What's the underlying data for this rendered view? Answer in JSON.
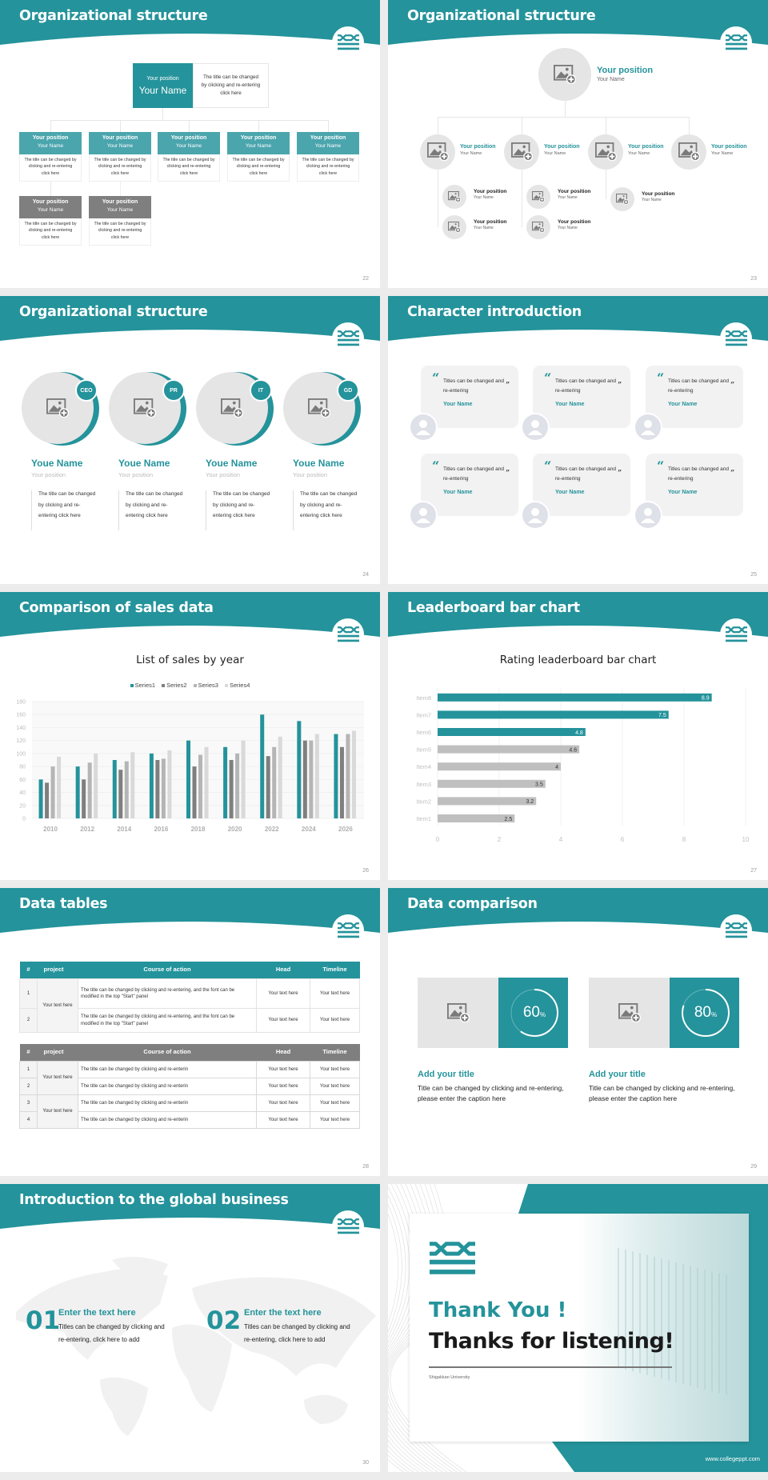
{
  "theme": {
    "accent": "#24939b",
    "dark_gray": "#7f7f7f",
    "light_gray": "#e6e5e5",
    "page_bg": "#ececec"
  },
  "slides": [
    {
      "title": "Organizational structure",
      "page": "22",
      "top": {
        "position": "Your position",
        "name": "Your Name",
        "desc": "The title can be changed by clicking and re-entering click here"
      },
      "row1": [
        {
          "position": "Your position",
          "name": "Your Name",
          "desc": "The title can be changed by clicking and re-entering click here"
        },
        {
          "position": "Your position",
          "name": "Your Name",
          "desc": "The title can be changed by clicking and re-entering click here"
        },
        {
          "position": "Your position",
          "name": "Your Name",
          "desc": "The title can be changed by clicking and re-entering click here"
        },
        {
          "position": "Your position",
          "name": "Your Name",
          "desc": "The title can be changed by clicking and re-entering click here"
        },
        {
          "position": "Your position",
          "name": "Your Name",
          "desc": "The title can be changed by clicking and re-entering click here"
        }
      ],
      "row2": [
        {
          "position": "Your position",
          "name": "Your Name",
          "desc": "The title can be changed by clicking and re-entering click here"
        },
        {
          "position": "Your position",
          "name": "Your Name",
          "desc": "The title can be changed by clicking and re-entering click here"
        }
      ]
    },
    {
      "title": "Organizational structure",
      "page": "23",
      "top": {
        "position": "Your position",
        "name": "Your Name"
      },
      "level2": [
        {
          "position": "Your position",
          "name": "Your Name"
        },
        {
          "position": "Your position",
          "name": "Your Name"
        },
        {
          "position": "Your position",
          "name": "Your Name"
        },
        {
          "position": "Your position",
          "name": "Your Name"
        }
      ],
      "level3": [
        {
          "position": "Your position",
          "name": "Your Name"
        },
        {
          "position": "Your position",
          "name": "Your Name"
        },
        {
          "position": "Your position",
          "name": "Your Name"
        },
        {
          "position": "Your position",
          "name": "Your Name"
        },
        {
          "position": "Your position",
          "name": "Your Name"
        }
      ]
    },
    {
      "title": "Organizational structure",
      "page": "24",
      "members": [
        {
          "badge": "CEO",
          "name": "Youe Name",
          "position": "Your position",
          "desc": "The title can be changed by clicking and re-entering click here"
        },
        {
          "badge": "PR",
          "name": "Youe Name",
          "position": "Your position",
          "desc": "The title can be changed by clicking and re-entering click here"
        },
        {
          "badge": "IT",
          "name": "Youe Name",
          "position": "Your position",
          "desc": "The title can be changed by clicking and re-entering click here"
        },
        {
          "badge": "GD",
          "name": "Youe Name",
          "position": "Your position",
          "desc": "The title can be changed by clicking and re-entering click here"
        }
      ]
    },
    {
      "title": "Character introduction",
      "page": "25",
      "cards": [
        {
          "quote": "Titles can be changed and re-entering",
          "name": "Your Name"
        },
        {
          "quote": "Titles can be changed and re-entering",
          "name": "Your Name"
        },
        {
          "quote": "Titles can be changed and re-entering",
          "name": "Your Name"
        },
        {
          "quote": "Titles can be changed and re-entering",
          "name": "Your Name"
        },
        {
          "quote": "Titles can be changed and re-entering",
          "name": "Your Name"
        },
        {
          "quote": "Titles can be changed and re-entering",
          "name": "Your Name"
        }
      ]
    },
    {
      "title": "Comparison of sales data",
      "page": "26"
    },
    {
      "title": "Leaderboard bar chart",
      "page": "27"
    },
    {
      "title": "Data tables",
      "page": "28",
      "table1": {
        "headers": [
          "#",
          "project",
          "Course of action",
          "Head",
          "Timeline"
        ],
        "project": "Your text here",
        "rows": [
          {
            "num": "1",
            "course": "The title can be changed by clicking and re-entering, and the font can be modified in the top \"Start\" panel",
            "head": "Your text here",
            "timeline": "Your text here"
          },
          {
            "num": "2",
            "course": "The title can be changed by clicking and re-entering, and the font can be modified in the top \"Start\" panel",
            "head": "Your text here",
            "timeline": "Your text here"
          }
        ]
      },
      "table2": {
        "headers": [
          "#",
          "project",
          "Course of action",
          "Head",
          "Timeline"
        ],
        "projects": [
          "Your text here",
          "Your text here"
        ],
        "rows": [
          {
            "num": "1",
            "course": "The title can be changed by clicking and re-enterin",
            "head": "Your text here",
            "timeline": "Your text here"
          },
          {
            "num": "2",
            "course": "The title can be changed by clicking and re-enterin",
            "head": "Your text here",
            "timeline": "Your text here"
          },
          {
            "num": "3",
            "course": "The title can be changed by clicking and re-enterin",
            "head": "Your text here",
            "timeline": "Your text here"
          },
          {
            "num": "4",
            "course": "The title can be changed by clicking and re-enterin",
            "head": "Your text here",
            "timeline": "Your text here"
          }
        ]
      }
    },
    {
      "title": "Data comparison",
      "page": "29",
      "items": [
        {
          "percent": 60,
          "value": "60",
          "unit": "%",
          "heading": "Add your title",
          "desc": "Title can be changed by clicking and re-entering, please enter the caption here"
        },
        {
          "percent": 80,
          "value": "80",
          "unit": "%",
          "heading": "Add your title",
          "desc": "Title can be changed by clicking and re-entering, please enter the caption here"
        }
      ]
    },
    {
      "title": "Introduction to the global business",
      "page": "30",
      "items": [
        {
          "num": "01",
          "heading": "Enter the text here",
          "desc": "Titles can be changed by clicking and re-entering, click here to add"
        },
        {
          "num": "02",
          "heading": "Enter the text here",
          "desc": "Titles can be changed by clicking and re-entering, click here to add"
        }
      ]
    },
    {
      "thank_you": "Thank You !",
      "thanks": "Thanks for listening!",
      "university": "Shigakkan University",
      "website": "www.collegeppt.com"
    }
  ],
  "chart_data": [
    {
      "type": "bar",
      "title": "List of sales by year",
      "categories": [
        "2010",
        "2012",
        "2014",
        "2016",
        "2018",
        "2020",
        "2022",
        "2024",
        "2026"
      ],
      "series": [
        {
          "name": "Series1",
          "color": "#24939b",
          "values": [
            60,
            80,
            90,
            100,
            120,
            110,
            160,
            150,
            130
          ]
        },
        {
          "name": "Series2",
          "color": "#7f7f7f",
          "values": [
            55,
            60,
            75,
            90,
            80,
            90,
            96,
            120,
            110
          ]
        },
        {
          "name": "Series3",
          "color": "#b5b5b5",
          "values": [
            80,
            86,
            88,
            92,
            98,
            100,
            110,
            120,
            130
          ]
        },
        {
          "name": "Series4",
          "color": "#d9d9d9",
          "values": [
            95,
            100,
            102,
            105,
            110,
            120,
            126,
            130,
            135
          ]
        }
      ],
      "ylim": [
        0,
        180
      ],
      "yticks": [
        "0",
        "20",
        "40",
        "60",
        "80",
        "100",
        "120",
        "140",
        "160",
        "180"
      ],
      "grid": true,
      "legend": "top"
    },
    {
      "type": "bar",
      "orientation": "horizontal",
      "title": "Rating leaderboard bar chart",
      "categories": [
        "Item1",
        "Item2",
        "Item3",
        "Item4",
        "Item5",
        "Item6",
        "Item7",
        "Item8"
      ],
      "values": [
        2.5,
        3.2,
        3.5,
        4,
        4.6,
        4.8,
        7.5,
        8.9
      ],
      "value_labels": [
        "2.5",
        "3.2",
        "3.5",
        "4",
        "4.6",
        "4.8",
        "7.5",
        "8.9"
      ],
      "highlight_color": "#24939b",
      "base_color": "#bfbfbf",
      "highlighted": [
        "Item6",
        "Item7",
        "Item8"
      ],
      "xlim": [
        0,
        10
      ],
      "xticks": [
        "0",
        "2",
        "4",
        "6",
        "8",
        "10"
      ],
      "grid": true
    }
  ]
}
